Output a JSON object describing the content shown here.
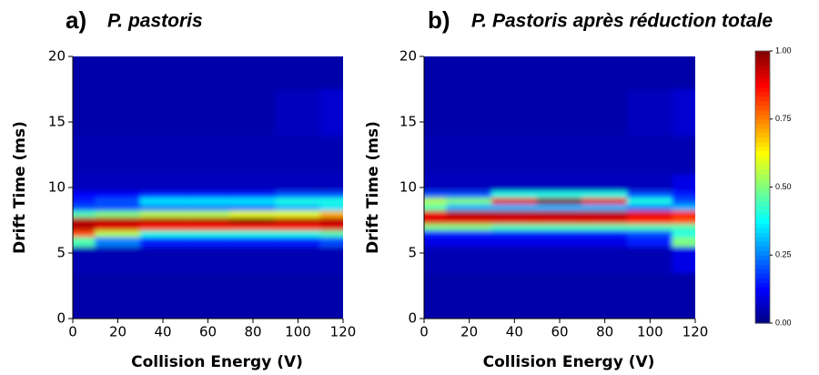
{
  "chart_data": [
    {
      "type": "heatmap",
      "panel": "a)",
      "title": "P. pastoris",
      "x_label": "Collision Energy (V)",
      "y_label": "Drift Time (ms)",
      "x": [
        0,
        20,
        40,
        60,
        80,
        100,
        120
      ],
      "y": [
        2,
        5,
        6,
        6.5,
        7,
        7.5,
        8,
        8.5,
        9,
        9.5,
        10,
        12,
        16,
        19
      ],
      "z": [
        [
          0.04,
          0.04,
          0.04,
          0.04,
          0.04,
          0.04,
          0.04
        ],
        [
          0.05,
          0.05,
          0.05,
          0.05,
          0.05,
          0.05,
          0.05
        ],
        [
          0.45,
          0.25,
          0.15,
          0.15,
          0.15,
          0.15,
          0.2
        ],
        [
          0.8,
          0.55,
          0.4,
          0.4,
          0.4,
          0.4,
          0.45
        ],
        [
          0.95,
          0.9,
          0.85,
          0.85,
          0.85,
          0.85,
          0.9
        ],
        [
          0.95,
          0.95,
          0.95,
          0.95,
          1.0,
          0.95,
          0.95
        ],
        [
          0.45,
          0.5,
          0.55,
          0.55,
          0.6,
          0.6,
          0.7
        ],
        [
          0.2,
          0.2,
          0.25,
          0.25,
          0.25,
          0.3,
          0.35
        ],
        [
          0.15,
          0.2,
          0.35,
          0.35,
          0.35,
          0.4,
          0.4
        ],
        [
          0.12,
          0.12,
          0.15,
          0.15,
          0.15,
          0.2,
          0.2
        ],
        [
          0.06,
          0.06,
          0.06,
          0.06,
          0.06,
          0.06,
          0.06
        ],
        [
          0.05,
          0.05,
          0.05,
          0.05,
          0.05,
          0.05,
          0.05
        ],
        [
          0.04,
          0.04,
          0.04,
          0.04,
          0.04,
          0.06,
          0.08
        ],
        [
          0.04,
          0.04,
          0.04,
          0.04,
          0.04,
          0.04,
          0.04
        ]
      ],
      "xlim": [
        0,
        120
      ],
      "xticks": [
        0,
        20,
        40,
        60,
        80,
        100,
        120
      ],
      "ylim": [
        0,
        20
      ],
      "yticks": [
        0,
        5,
        10,
        15,
        20
      ],
      "colormap": "jet",
      "zlim": [
        0,
        1
      ]
    },
    {
      "type": "heatmap",
      "panel": "b)",
      "title": "P. Pastoris après réduction totale",
      "x_label": "Collision Energy (V)",
      "y_label": "Drift Time (ms)",
      "x": [
        0,
        20,
        40,
        60,
        80,
        100,
        120
      ],
      "y": [
        2,
        5,
        6,
        6.5,
        7,
        7.5,
        8,
        8.5,
        9,
        9.5,
        10,
        12,
        16,
        19
      ],
      "z": [
        [
          0.04,
          0.04,
          0.04,
          0.04,
          0.04,
          0.04,
          0.04
        ],
        [
          0.05,
          0.05,
          0.05,
          0.05,
          0.05,
          0.05,
          0.1
        ],
        [
          0.1,
          0.1,
          0.1,
          0.1,
          0.1,
          0.15,
          0.5
        ],
        [
          0.15,
          0.15,
          0.15,
          0.15,
          0.15,
          0.2,
          0.4
        ],
        [
          0.5,
          0.5,
          0.45,
          0.45,
          0.45,
          0.45,
          0.45
        ],
        [
          0.9,
          0.9,
          0.9,
          0.9,
          0.9,
          0.85,
          0.8
        ],
        [
          0.9,
          0.95,
          0.95,
          0.95,
          0.95,
          0.9,
          0.85
        ],
        [
          0.45,
          0.3,
          0.3,
          0.3,
          0.3,
          0.25,
          0.3
        ],
        [
          0.55,
          0.5,
          0.9,
          1.0,
          0.9,
          0.4,
          0.2
        ],
        [
          0.2,
          0.2,
          0.4,
          0.4,
          0.4,
          0.2,
          0.15
        ],
        [
          0.06,
          0.06,
          0.06,
          0.06,
          0.06,
          0.06,
          0.1
        ],
        [
          0.05,
          0.05,
          0.05,
          0.05,
          0.05,
          0.05,
          0.05
        ],
        [
          0.04,
          0.04,
          0.04,
          0.04,
          0.04,
          0.06,
          0.08
        ],
        [
          0.04,
          0.04,
          0.04,
          0.04,
          0.04,
          0.04,
          0.04
        ]
      ],
      "xlim": [
        0,
        120
      ],
      "xticks": [
        0,
        20,
        40,
        60,
        80,
        100,
        120
      ],
      "ylim": [
        0,
        20
      ],
      "yticks": [
        0,
        5,
        10,
        15,
        20
      ],
      "colormap": "jet",
      "zlim": [
        0,
        1
      ],
      "colorbar": {
        "lim": [
          0,
          1
        ],
        "ticks": [
          {
            "value": 0,
            "label": "0.00"
          },
          {
            "value": 0.25,
            "label": "0.25"
          },
          {
            "value": 0.5,
            "label": "0.50"
          },
          {
            "value": 0.75,
            "label": "0.75"
          },
          {
            "value": 1,
            "label": "1.00"
          }
        ]
      }
    }
  ]
}
